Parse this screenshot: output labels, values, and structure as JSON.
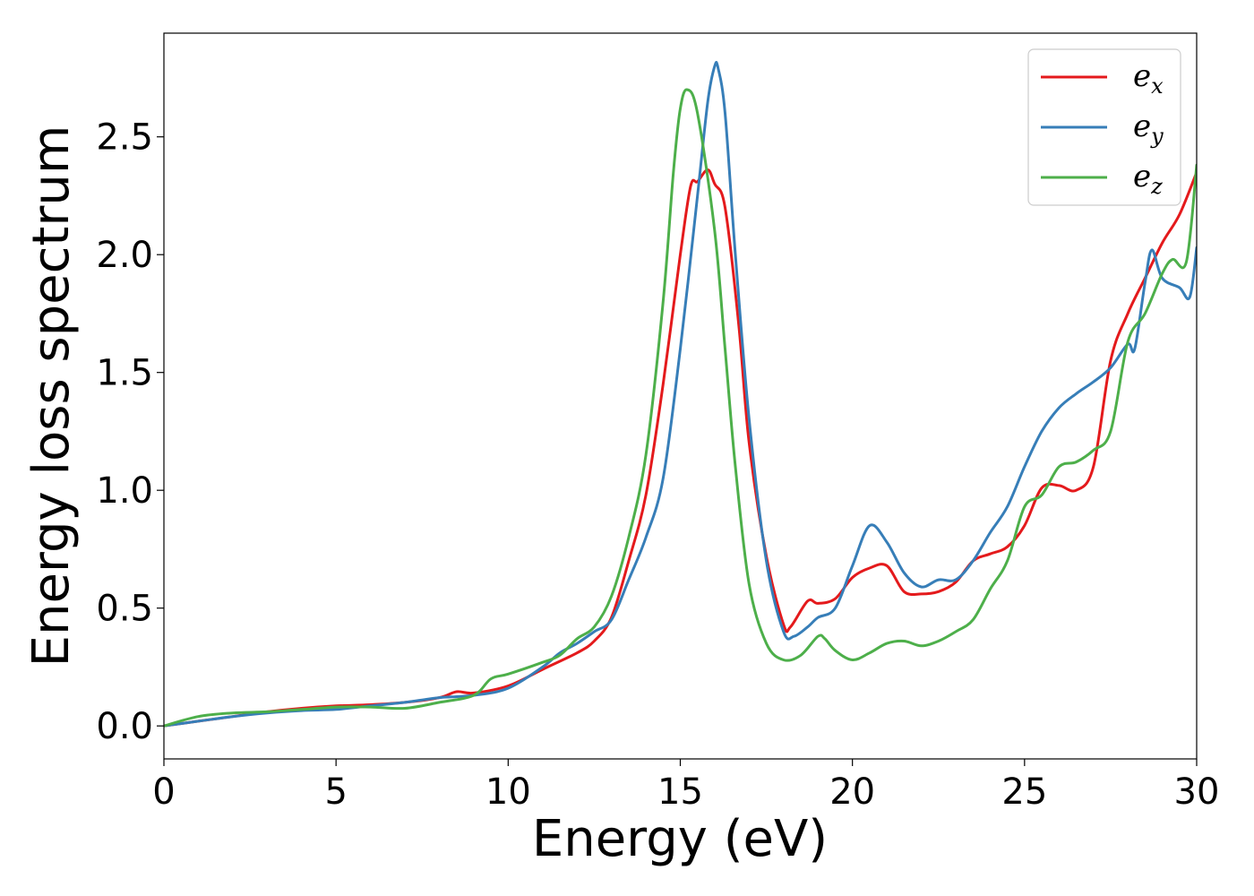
{
  "chart_data": {
    "type": "line",
    "xlabel": "Energy (eV)",
    "ylabel": "Energy loss spectrum",
    "xlim": [
      0,
      30
    ],
    "ylim": [
      -0.14,
      2.94
    ],
    "xticks": [
      0,
      5,
      10,
      15,
      20,
      25,
      30
    ],
    "xtick_labels": [
      "0",
      "5",
      "10",
      "15",
      "20",
      "25",
      "30"
    ],
    "yticks": [
      0.0,
      0.5,
      1.0,
      1.5,
      2.0,
      2.5
    ],
    "ytick_labels": [
      "0.0",
      "0.5",
      "1.0",
      "1.5",
      "2.0",
      "2.5"
    ],
    "grid": false,
    "legend_position": "top-right",
    "series": [
      {
        "name": "e_x",
        "legend_base": "e",
        "legend_sub": "x",
        "color": "#e41a1c",
        "x": [
          0,
          1,
          2,
          3,
          4,
          5,
          6,
          7,
          8,
          8.5,
          9,
          10,
          11,
          12,
          12.5,
          13,
          13.5,
          14,
          14.5,
          15,
          15.3,
          15.5,
          15.8,
          16,
          16.3,
          16.7,
          17,
          17.5,
          18,
          18.2,
          18.7,
          19,
          19.5,
          20,
          20.5,
          21,
          21.5,
          22,
          22.5,
          23,
          23.5,
          24,
          24.5,
          25,
          25.5,
          26,
          26.5,
          27,
          27.5,
          28,
          28.5,
          29,
          29.5,
          30
        ],
        "y": [
          0,
          0.02,
          0.04,
          0.06,
          0.075,
          0.085,
          0.09,
          0.1,
          0.12,
          0.145,
          0.14,
          0.17,
          0.24,
          0.31,
          0.36,
          0.46,
          0.7,
          0.98,
          1.45,
          2.0,
          2.29,
          2.31,
          2.36,
          2.3,
          2.2,
          1.7,
          1.2,
          0.72,
          0.43,
          0.42,
          0.53,
          0.52,
          0.54,
          0.63,
          0.67,
          0.68,
          0.57,
          0.56,
          0.57,
          0.61,
          0.7,
          0.73,
          0.76,
          0.85,
          1.01,
          1.02,
          1.0,
          1.1,
          1.55,
          1.75,
          1.9,
          2.05,
          2.17,
          2.35
        ]
      },
      {
        "name": "e_y",
        "legend_base": "e",
        "legend_sub": "y",
        "color": "#377eb8",
        "x": [
          0,
          1,
          2,
          3,
          4,
          5,
          6,
          7,
          7.5,
          8,
          9,
          10,
          11,
          11.5,
          12,
          12.5,
          13,
          13.5,
          14,
          14.5,
          15,
          15.5,
          15.8,
          16,
          16.1,
          16.3,
          16.6,
          17,
          17.5,
          18,
          18.3,
          18.7,
          19,
          19.5,
          20,
          20.5,
          21,
          21.5,
          22,
          22.5,
          23,
          23.5,
          24,
          24.5,
          25,
          25.5,
          26,
          26.5,
          27,
          27.5,
          28,
          28.2,
          28.5,
          28.7,
          29,
          29.5,
          29.8,
          30
        ],
        "y": [
          0,
          0.02,
          0.04,
          0.055,
          0.065,
          0.07,
          0.085,
          0.1,
          0.11,
          0.12,
          0.13,
          0.16,
          0.25,
          0.31,
          0.35,
          0.4,
          0.45,
          0.62,
          0.8,
          1.05,
          1.6,
          2.25,
          2.65,
          2.8,
          2.79,
          2.6,
          2.0,
          1.3,
          0.7,
          0.4,
          0.38,
          0.42,
          0.46,
          0.5,
          0.68,
          0.85,
          0.78,
          0.65,
          0.59,
          0.62,
          0.62,
          0.7,
          0.82,
          0.93,
          1.1,
          1.25,
          1.35,
          1.41,
          1.46,
          1.52,
          1.62,
          1.6,
          1.88,
          2.02,
          1.9,
          1.86,
          1.82,
          2.03
        ]
      },
      {
        "name": "e_z",
        "legend_base": "e",
        "legend_sub": "z",
        "color": "#4daf4a",
        "x": [
          0,
          1,
          2,
          3,
          4,
          5,
          6,
          7,
          8,
          9,
          9.5,
          10,
          11,
          11.5,
          12,
          12.5,
          13,
          13.5,
          14,
          14.5,
          14.8,
          15,
          15.2,
          15.5,
          16,
          16.3,
          16.6,
          17,
          17.5,
          18,
          18.5,
          19,
          19.2,
          19.5,
          20,
          20.5,
          21,
          21.5,
          22,
          22.5,
          23,
          23.5,
          24,
          24.5,
          25,
          25.5,
          26,
          26.5,
          27,
          27.5,
          28,
          28.5,
          29,
          29.3,
          29.7,
          30
        ],
        "y": [
          0,
          0.04,
          0.055,
          0.06,
          0.07,
          0.08,
          0.08,
          0.075,
          0.1,
          0.13,
          0.2,
          0.22,
          0.27,
          0.3,
          0.37,
          0.42,
          0.55,
          0.8,
          1.15,
          1.8,
          2.35,
          2.62,
          2.7,
          2.6,
          2.1,
          1.6,
          1.1,
          0.6,
          0.35,
          0.28,
          0.3,
          0.38,
          0.37,
          0.32,
          0.28,
          0.31,
          0.35,
          0.36,
          0.34,
          0.36,
          0.4,
          0.45,
          0.58,
          0.7,
          0.93,
          0.98,
          1.1,
          1.12,
          1.17,
          1.25,
          1.63,
          1.75,
          1.92,
          1.98,
          1.97,
          2.38
        ]
      }
    ]
  }
}
